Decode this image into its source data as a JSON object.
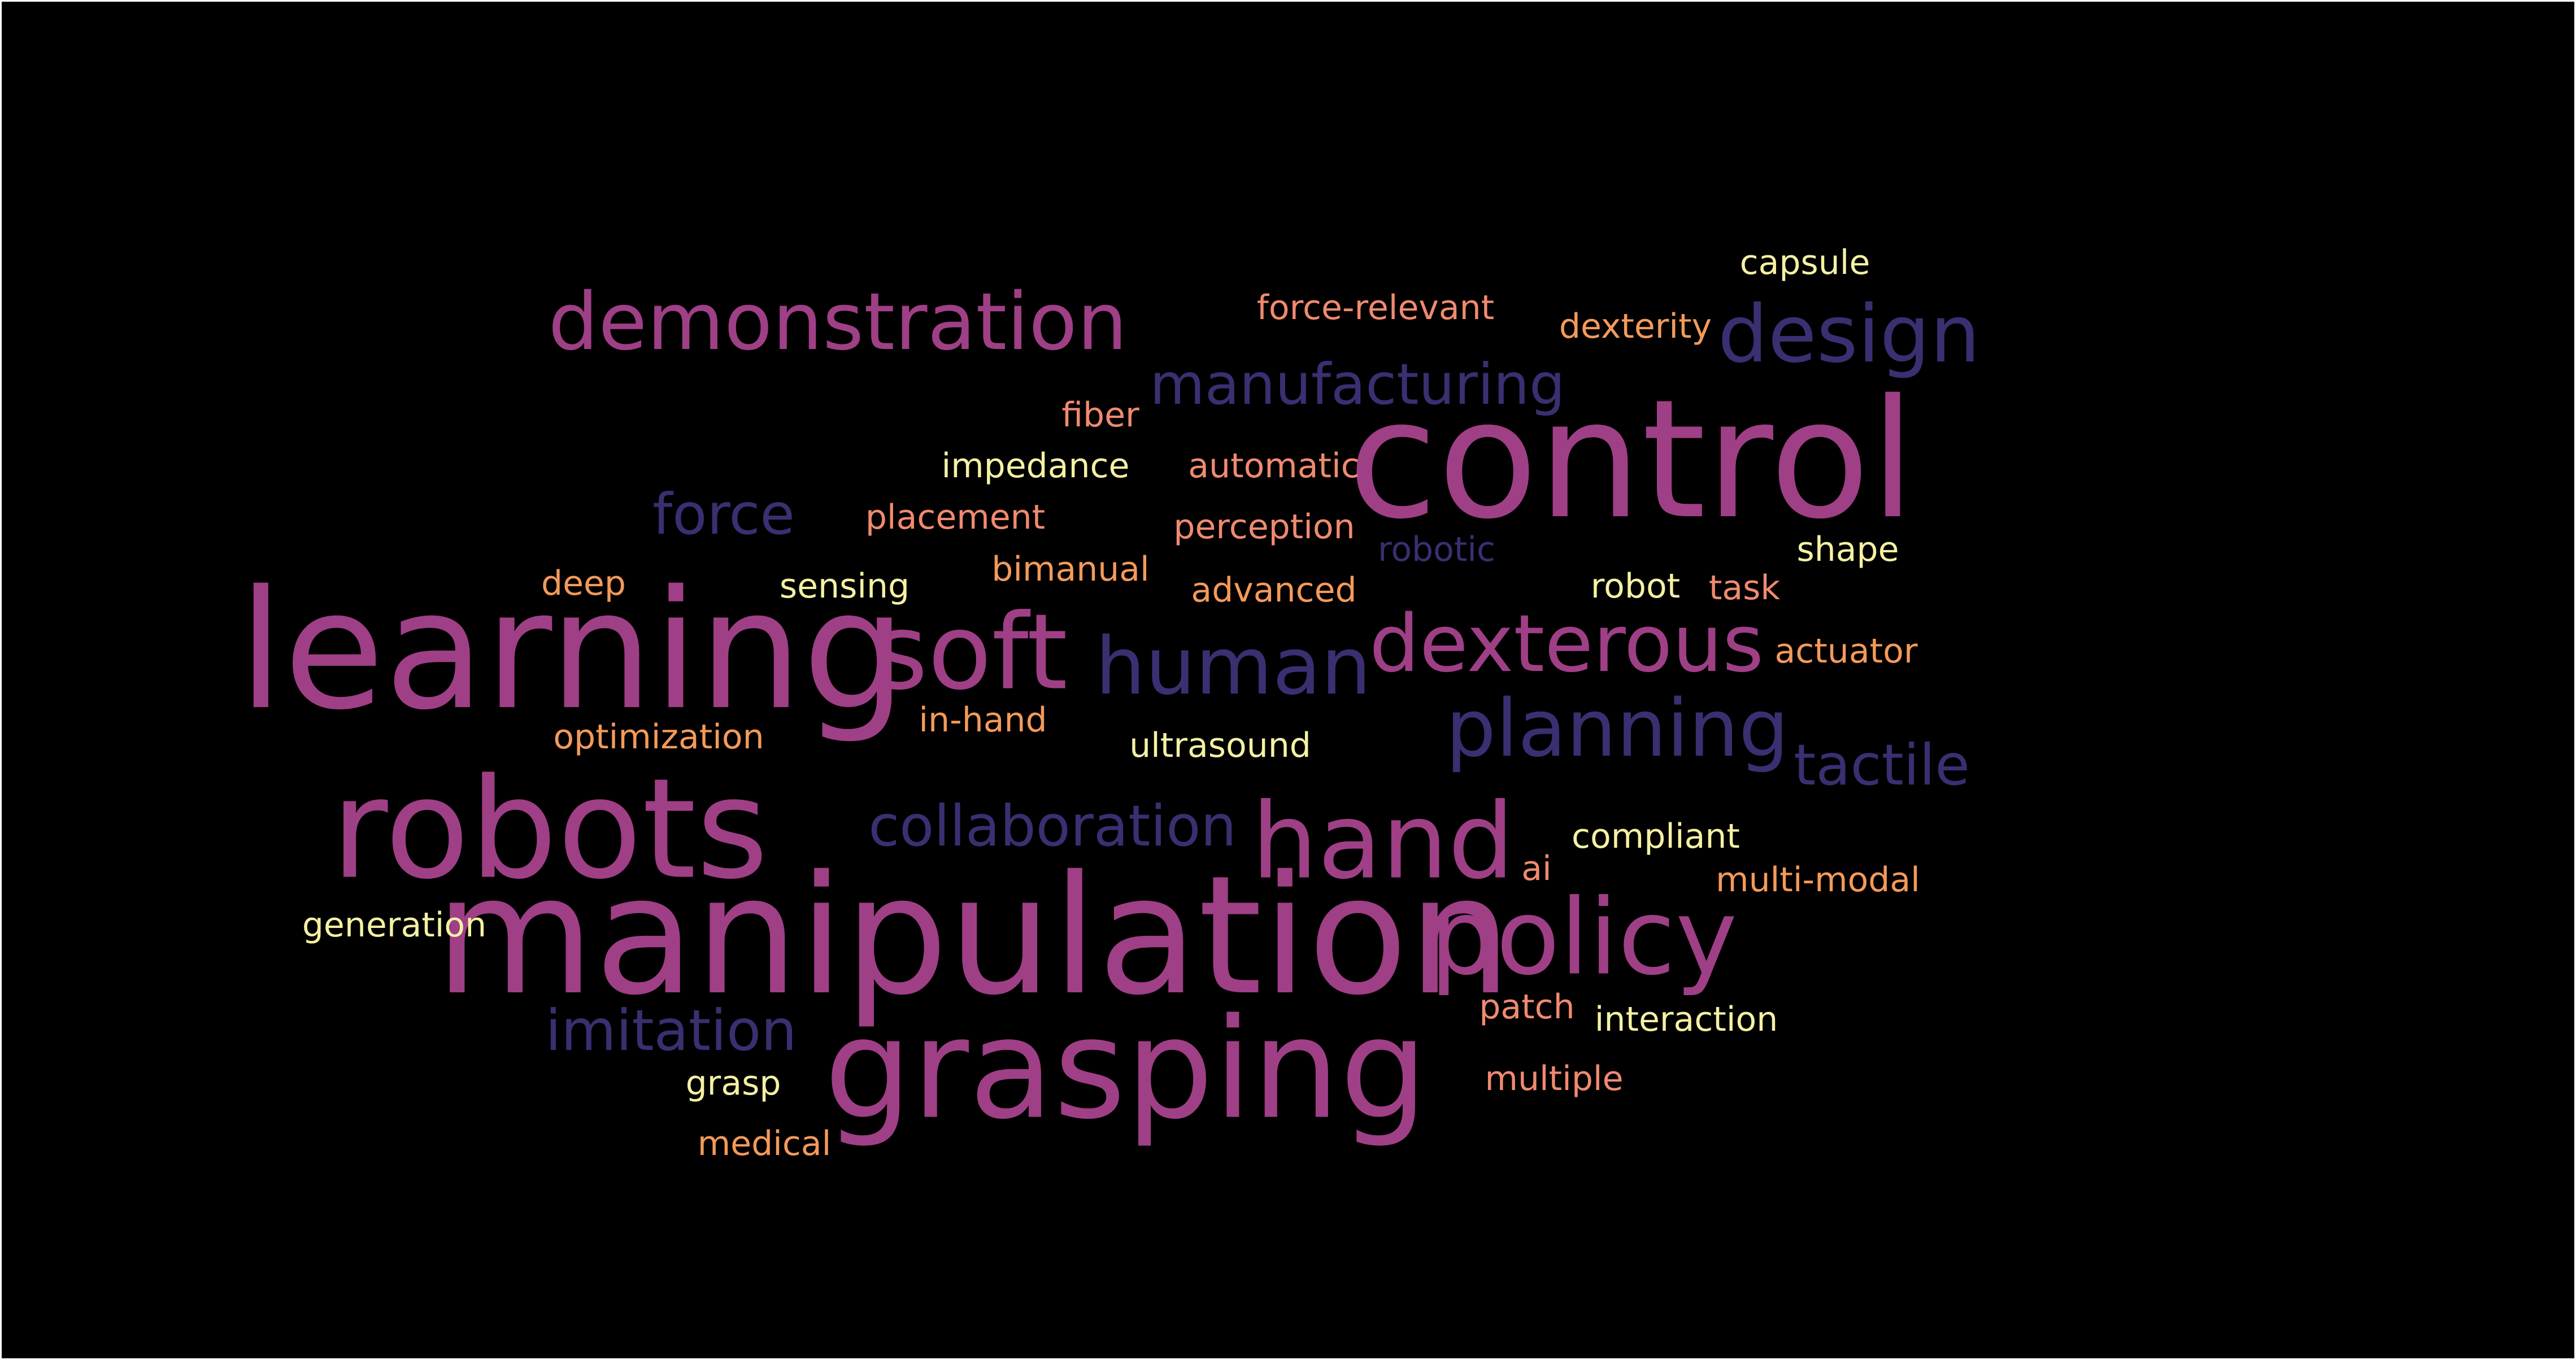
{
  "word_cloud": {
    "background": "#000000",
    "palette": {
      "magenta": "#9f3f86",
      "indigo": "#3b2f72",
      "coral": "#f08a70",
      "orange": "#f39a5a",
      "yellow": "#f4f1a4"
    },
    "words": {
      "control": "control",
      "manipulation": "manipulation",
      "learning": "learning",
      "robots": "robots",
      "grasping": "grasping",
      "soft": "soft",
      "hand": "hand",
      "policy": "policy",
      "demonstration": "demonstration",
      "dexterous": "dexterous",
      "design": "design",
      "human": "human",
      "planning": "planning",
      "collaboration": "collaboration",
      "manufacturing": "manufacturing",
      "force": "force",
      "imitation": "imitation",
      "tactile": "tactile",
      "robotic": "robotic",
      "capsule": "capsule",
      "force_relevant": "force-relevant",
      "dexterity": "dexterity",
      "fiber": "fiber",
      "impedance": "impedance",
      "automatic": "automatic",
      "placement": "placement",
      "perception": "perception",
      "shape": "shape",
      "deep": "deep",
      "sensing": "sensing",
      "bimanual": "bimanual",
      "advanced": "advanced",
      "robot": "robot",
      "task": "task",
      "actuator": "actuator",
      "optimization": "optimization",
      "in_hand": "in-hand",
      "ultrasound": "ultrasound",
      "compliant": "compliant",
      "ai": "ai",
      "multi_modal": "multi-modal",
      "generation": "generation",
      "patch": "patch",
      "interaction": "interaction",
      "grasp": "grasp",
      "multiple": "multiple",
      "medical": "medical"
    }
  }
}
